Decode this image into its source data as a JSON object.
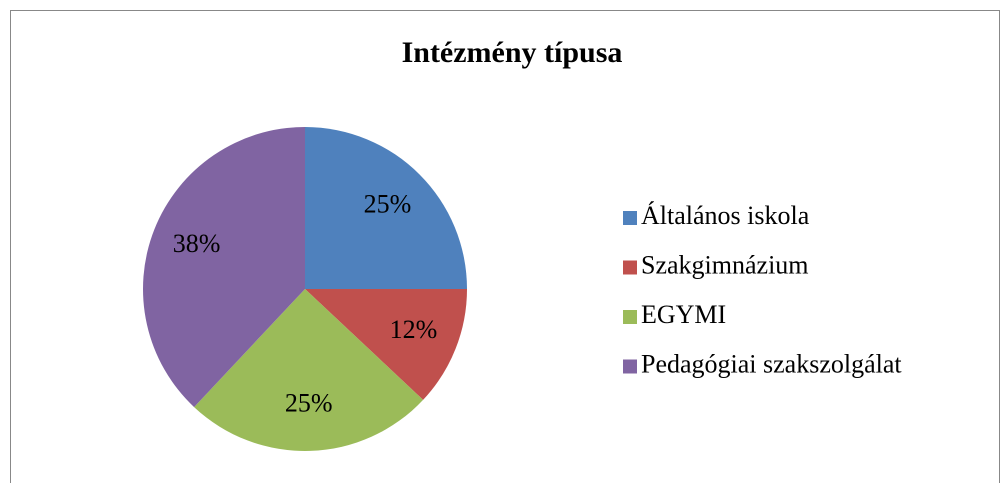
{
  "chart_data": {
    "type": "pie",
    "title": "Intézmény típusa",
    "categories": [
      "Általános iskola",
      "Szakgimnázium",
      "EGYMI",
      "Pedagógiai szakszolgálat"
    ],
    "values": [
      25,
      12,
      25,
      38
    ],
    "value_labels": [
      "25%",
      "12%",
      "25%",
      "38%"
    ],
    "colors": [
      "#4f81bd",
      "#c0504d",
      "#9bbb59",
      "#8064a2"
    ],
    "legend": "right"
  }
}
